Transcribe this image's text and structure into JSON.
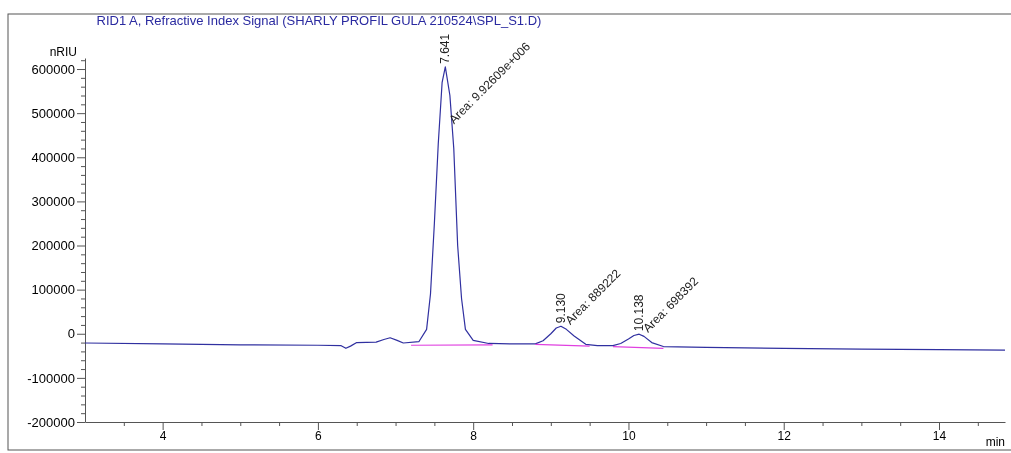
{
  "chart_data": {
    "type": "line",
    "title": "RID1 A, Refractive Index Signal (SHARLY PROFIL GULA 210524\\SPL_S1.D)",
    "ylabel": "nRIU",
    "xlabel": "min",
    "xlim": [
      3,
      14.85
    ],
    "xticks": [
      {
        "value": 3.5,
        "label": null
      },
      4,
      {
        "value": 4.5,
        "label": null
      },
      {
        "value": 5,
        "label": null
      },
      {
        "value": 5.5,
        "label": null
      },
      6,
      {
        "value": 6.5,
        "label": null
      },
      {
        "value": 7,
        "label": null
      },
      {
        "value": 7.5,
        "label": null
      },
      8,
      {
        "value": 8.5,
        "label": null
      },
      {
        "value": 9,
        "label": null
      },
      {
        "value": 9.5,
        "label": null
      },
      10,
      {
        "value": 10.5,
        "label": null
      },
      {
        "value": 11,
        "label": null
      },
      {
        "value": 11.5,
        "label": null
      },
      12,
      {
        "value": 12.5,
        "label": null
      },
      {
        "value": 13,
        "label": null
      },
      {
        "value": 13.5,
        "label": null
      },
      14,
      {
        "value": 14.5,
        "label": null
      }
    ],
    "ylim": [
      -200000,
      625000
    ],
    "yticks": [
      -200000,
      {
        "value": -180000,
        "label": null
      },
      {
        "value": -160000,
        "label": null
      },
      {
        "value": -140000,
        "label": null
      },
      {
        "value": -120000,
        "label": null
      },
      -100000,
      {
        "value": -80000,
        "label": null
      },
      {
        "value": -60000,
        "label": null
      },
      {
        "value": -40000,
        "label": null
      },
      {
        "value": -20000,
        "label": null
      },
      0,
      {
        "value": 20000,
        "label": null
      },
      {
        "value": 40000,
        "label": null
      },
      {
        "value": 60000,
        "label": null
      },
      {
        "value": 80000,
        "label": null
      },
      100000,
      {
        "value": 120000,
        "label": null
      },
      {
        "value": 140000,
        "label": null
      },
      {
        "value": 160000,
        "label": null
      },
      {
        "value": 180000,
        "label": null
      },
      200000,
      {
        "value": 220000,
        "label": null
      },
      {
        "value": 240000,
        "label": null
      },
      {
        "value": 260000,
        "label": null
      },
      {
        "value": 280000,
        "label": null
      },
      300000,
      {
        "value": 320000,
        "label": null
      },
      {
        "value": 340000,
        "label": null
      },
      {
        "value": 360000,
        "label": null
      },
      {
        "value": 380000,
        "label": null
      },
      400000,
      {
        "value": 420000,
        "label": null
      },
      {
        "value": 440000,
        "label": null
      },
      {
        "value": 460000,
        "label": null
      },
      {
        "value": 480000,
        "label": null
      },
      500000,
      {
        "value": 520000,
        "label": null
      },
      {
        "value": 540000,
        "label": null
      },
      {
        "value": 560000,
        "label": null
      },
      {
        "value": 580000,
        "label": null
      },
      600000,
      {
        "value": 620000,
        "label": null
      }
    ],
    "grid": false,
    "marker": "none",
    "line_style": "solid",
    "series": [
      {
        "color": "#3030a0",
        "x": [
          3,
          4,
          5,
          6,
          6.3,
          6.36,
          6.42,
          6.5,
          6.75,
          6.85,
          6.93,
          7.02,
          7.1,
          7.3,
          7.4,
          7.45,
          7.5,
          7.55,
          7.6,
          7.641,
          7.7,
          7.75,
          7.8,
          7.85,
          7.9,
          8,
          8.2,
          8.5,
          8.8,
          8.9,
          9,
          9.07,
          9.13,
          9.2,
          9.3,
          9.45,
          9.6,
          9.8,
          9.9,
          10,
          10.07,
          10.138,
          10.2,
          10.3,
          10.45,
          11,
          12,
          13,
          14,
          14.85
        ],
        "values": [
          -21000,
          -23000,
          -25000,
          -26000,
          -27000,
          -33000,
          -28000,
          -20000,
          -19000,
          -13000,
          -9000,
          -15000,
          -21000,
          -18000,
          10000,
          90000,
          250000,
          430000,
          570000,
          605000,
          540000,
          420000,
          200000,
          80000,
          10000,
          -15000,
          -22000,
          -23000,
          -23000,
          -16000,
          0,
          13000,
          17000,
          10000,
          -5000,
          -24000,
          -27000,
          -27000,
          -22000,
          -12000,
          -4000,
          -1000,
          -6000,
          -20000,
          -29000,
          -31000,
          -33000,
          -35000,
          -36000,
          -37000
        ]
      },
      {
        "color": "#e040e0",
        "x": [
          7.2,
          8.25
        ],
        "values": [
          -26000,
          -25000
        ]
      },
      {
        "color": "#e040e0",
        "x": [
          8.8,
          9.5
        ],
        "values": [
          -24000,
          -28000
        ]
      },
      {
        "color": "#e040e0",
        "x": [
          9.8,
          10.45
        ],
        "values": [
          -29000,
          -33000
        ]
      }
    ],
    "annotations": [
      {
        "text": "7.641",
        "x": 7.641,
        "y": 605000
      },
      {
        "text": "Area: 9.92609e+006",
        "x": 7.7,
        "y": 470000
      },
      {
        "text": "9.130",
        "x": 9.13,
        "y": 17000
      },
      {
        "text": "Area: 889222",
        "x": 9.2,
        "y": 15000
      },
      {
        "text": "10.138",
        "x": 10.138,
        "y": -1000
      },
      {
        "text": "Area: 698392",
        "x": 10.2,
        "y": -3000
      }
    ]
  }
}
